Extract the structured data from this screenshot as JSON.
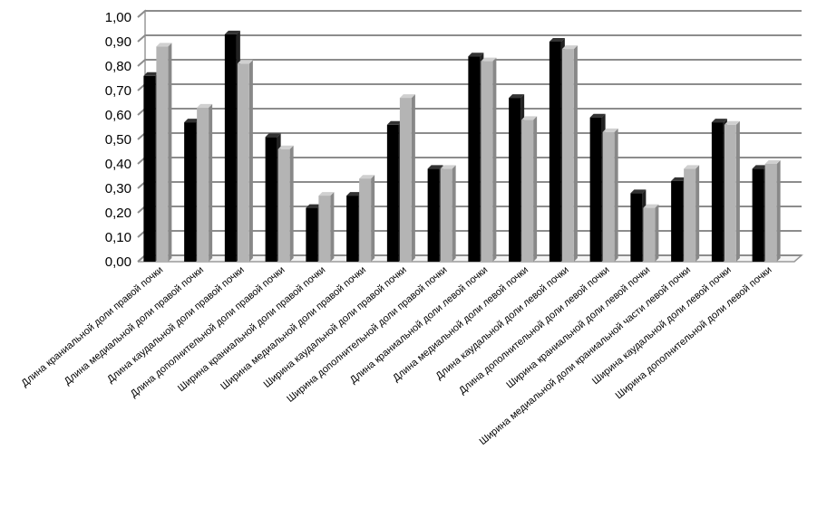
{
  "chart_data": {
    "type": "bar",
    "three_d": true,
    "title": "",
    "xlabel": "",
    "ylabel": "",
    "ylim": [
      0,
      1.0
    ],
    "yticks": [
      "0,00",
      "0,10",
      "0,20",
      "0,30",
      "0,40",
      "0,50",
      "0,60",
      "0,70",
      "0,80",
      "0,90",
      "1,00"
    ],
    "grid": true,
    "legend": "none",
    "categories": [
      "Длина краниальной доли правой почки",
      "Длина медиальной доли правой почки",
      "Длина каудальной доли правой почки",
      "Длина дополнительной доли правой почки",
      "Ширина краниальной доли правой почки",
      "Ширина медиальной доли правой почки",
      "Ширина каудальной доли правой почки",
      "Ширина дополнительной доли правой почки",
      "Длина краниальной доли левой почки",
      "Длина медиальной доли левой почки",
      "Длина каудальной доли левой почки",
      "Длина дополнительной доли левой почки",
      "Ширина краниальной доли левой почки",
      "Ширина медиальной доли краниальной части левой почки",
      "Ширина каудальной доли левой почки",
      "Ширина дополнительной доли  левой почки"
    ],
    "series": [
      {
        "color": "#000000",
        "values": [
          0.76,
          0.57,
          0.93,
          0.51,
          0.22,
          0.27,
          0.56,
          0.38,
          0.84,
          0.67,
          0.9,
          0.59,
          0.28,
          0.33,
          0.57,
          0.38
        ]
      },
      {
        "color": "#b4b4b4",
        "values": [
          0.88,
          0.63,
          0.81,
          0.46,
          0.27,
          0.34,
          0.67,
          0.38,
          0.82,
          0.58,
          0.87,
          0.53,
          0.22,
          0.38,
          0.56,
          0.4
        ]
      }
    ]
  }
}
